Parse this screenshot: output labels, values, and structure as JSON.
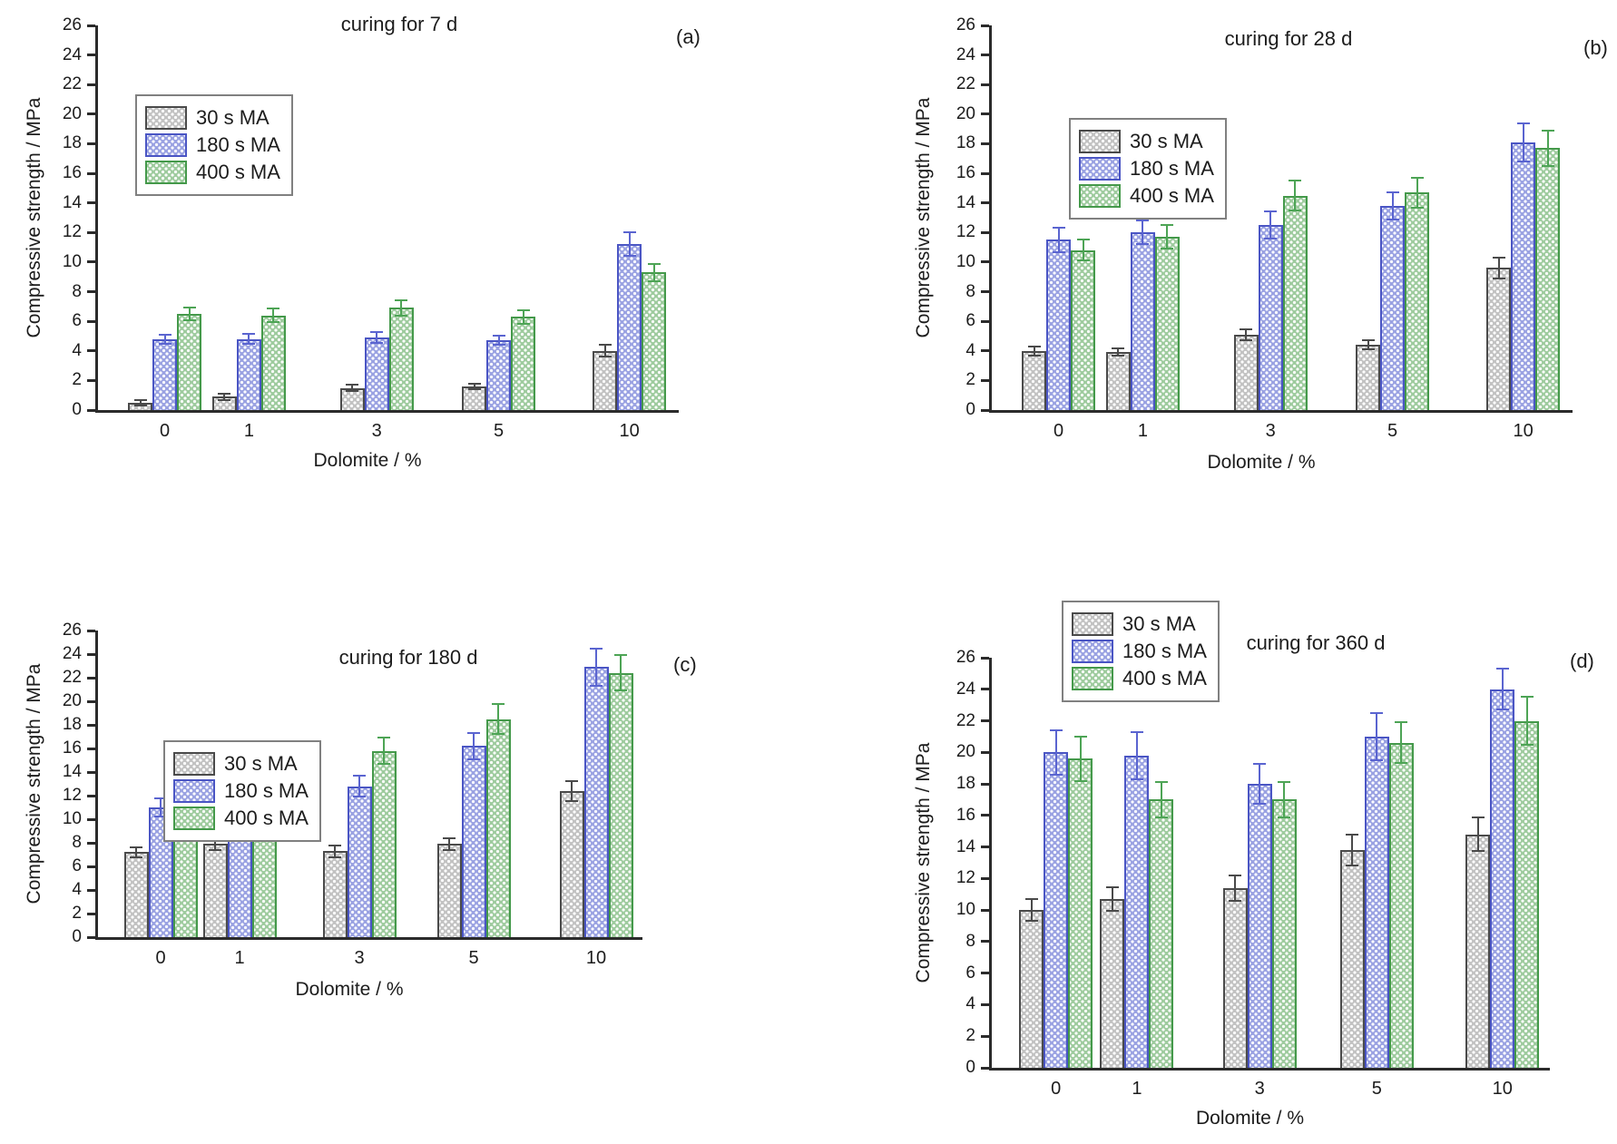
{
  "figure": {
    "background": "#ffffff",
    "description": "Compressive strength vs dolomite content for mortars at four curing ages"
  },
  "colors": {
    "axis": "#2b2b2b",
    "series": [
      {
        "name": "30 s MA",
        "fill": "#c2c2c2",
        "edge": "#4a4a4a",
        "error": "#4a4a4a"
      },
      {
        "name": "180 s MA",
        "fill": "#9aa2e2",
        "edge": "#4a55c4",
        "error": "#5a64d0"
      },
      {
        "name": "400 s MA",
        "fill": "#9ecb9e",
        "edge": "#44994a",
        "error": "#4da455"
      }
    ]
  },
  "chart_data": [
    {
      "panel": "a",
      "type": "bar",
      "title": "curing for 7 d",
      "corner_label": "(a)",
      "xlabel": "Dolomite / %",
      "ylabel": "Compressive strength / MPa",
      "ylim": [
        0,
        26
      ],
      "ytick_step": 2,
      "grid": false,
      "legend_position": "upper left inset",
      "categories": [
        "0",
        "1",
        "3",
        "5",
        "10"
      ],
      "series": [
        {
          "name": "30 s MA",
          "values": [
            0.5,
            0.9,
            1.5,
            1.6,
            4.0
          ],
          "errors": [
            0.2,
            0.2,
            0.2,
            0.2,
            0.4
          ]
        },
        {
          "name": "180 s MA",
          "values": [
            4.8,
            4.8,
            4.9,
            4.7,
            11.2
          ],
          "errors": [
            0.3,
            0.35,
            0.35,
            0.3,
            0.8
          ]
        },
        {
          "name": "400 s MA",
          "values": [
            6.5,
            6.4,
            6.9,
            6.3,
            9.3
          ],
          "errors": [
            0.45,
            0.45,
            0.5,
            0.45,
            0.6
          ]
        }
      ]
    },
    {
      "panel": "b",
      "type": "bar",
      "title": "curing for 28 d",
      "corner_label": "(b)",
      "xlabel": "Dolomite / %",
      "ylabel": "Compressive strength / MPa",
      "ylim": [
        0,
        26
      ],
      "ytick_step": 2,
      "grid": false,
      "legend_position": "upper left inset",
      "categories": [
        "0",
        "1",
        "3",
        "5",
        "10"
      ],
      "series": [
        {
          "name": "30 s MA",
          "values": [
            4.0,
            3.9,
            5.1,
            4.4,
            9.6
          ],
          "errors": [
            0.3,
            0.25,
            0.35,
            0.3,
            0.7
          ]
        },
        {
          "name": "180 s MA",
          "values": [
            11.5,
            12.0,
            12.5,
            13.8,
            18.1
          ],
          "errors": [
            0.8,
            0.8,
            0.9,
            0.9,
            1.3
          ]
        },
        {
          "name": "400 s MA",
          "values": [
            10.8,
            11.7,
            14.5,
            14.7,
            17.7
          ],
          "errors": [
            0.7,
            0.8,
            1.0,
            1.0,
            1.2
          ]
        }
      ]
    },
    {
      "panel": "c",
      "type": "bar",
      "title": "curing for 180 d",
      "corner_label": "(c)",
      "xlabel": "Dolomite / %",
      "ylabel": "Compressive strength / MPa",
      "ylim": [
        0,
        26
      ],
      "ytick_step": 2,
      "grid": false,
      "legend_position": "upper left inset",
      "categories": [
        "0",
        "1",
        "3",
        "5",
        "10"
      ],
      "series": [
        {
          "name": "30 s MA",
          "values": [
            7.2,
            7.9,
            7.3,
            7.9,
            12.4
          ],
          "errors": [
            0.45,
            0.5,
            0.5,
            0.5,
            0.85
          ]
        },
        {
          "name": "180 s MA",
          "values": [
            11.0,
            12.0,
            12.8,
            16.2,
            22.9
          ],
          "errors": [
            0.8,
            0.8,
            0.9,
            1.1,
            1.6
          ]
        },
        {
          "name": "400 s MA",
          "values": [
            12.5,
            12.1,
            15.8,
            18.5,
            22.4
          ],
          "errors": [
            0.9,
            0.85,
            1.1,
            1.3,
            1.5
          ]
        }
      ]
    },
    {
      "panel": "d",
      "type": "bar",
      "title": "curing for 360 d",
      "corner_label": "(d)",
      "xlabel": "Dolomite / %",
      "ylabel": "Compressive strength / MPa",
      "ylim": [
        0,
        26
      ],
      "ytick_step": 2,
      "grid": false,
      "legend_position": "upper left overlapping top",
      "categories": [
        "0",
        "1",
        "3",
        "5",
        "10"
      ],
      "series": [
        {
          "name": "30 s MA",
          "values": [
            10.0,
            10.7,
            11.4,
            13.8,
            14.8
          ],
          "errors": [
            0.7,
            0.75,
            0.8,
            1.0,
            1.05
          ]
        },
        {
          "name": "180 s MA",
          "values": [
            20.0,
            19.8,
            18.0,
            21.0,
            24.0
          ],
          "errors": [
            1.4,
            1.5,
            1.25,
            1.5,
            1.3
          ]
        },
        {
          "name": "400 s MA",
          "values": [
            19.6,
            17.0,
            17.0,
            20.6,
            22.0
          ],
          "errors": [
            1.4,
            1.1,
            1.1,
            1.3,
            1.5
          ]
        }
      ]
    }
  ]
}
